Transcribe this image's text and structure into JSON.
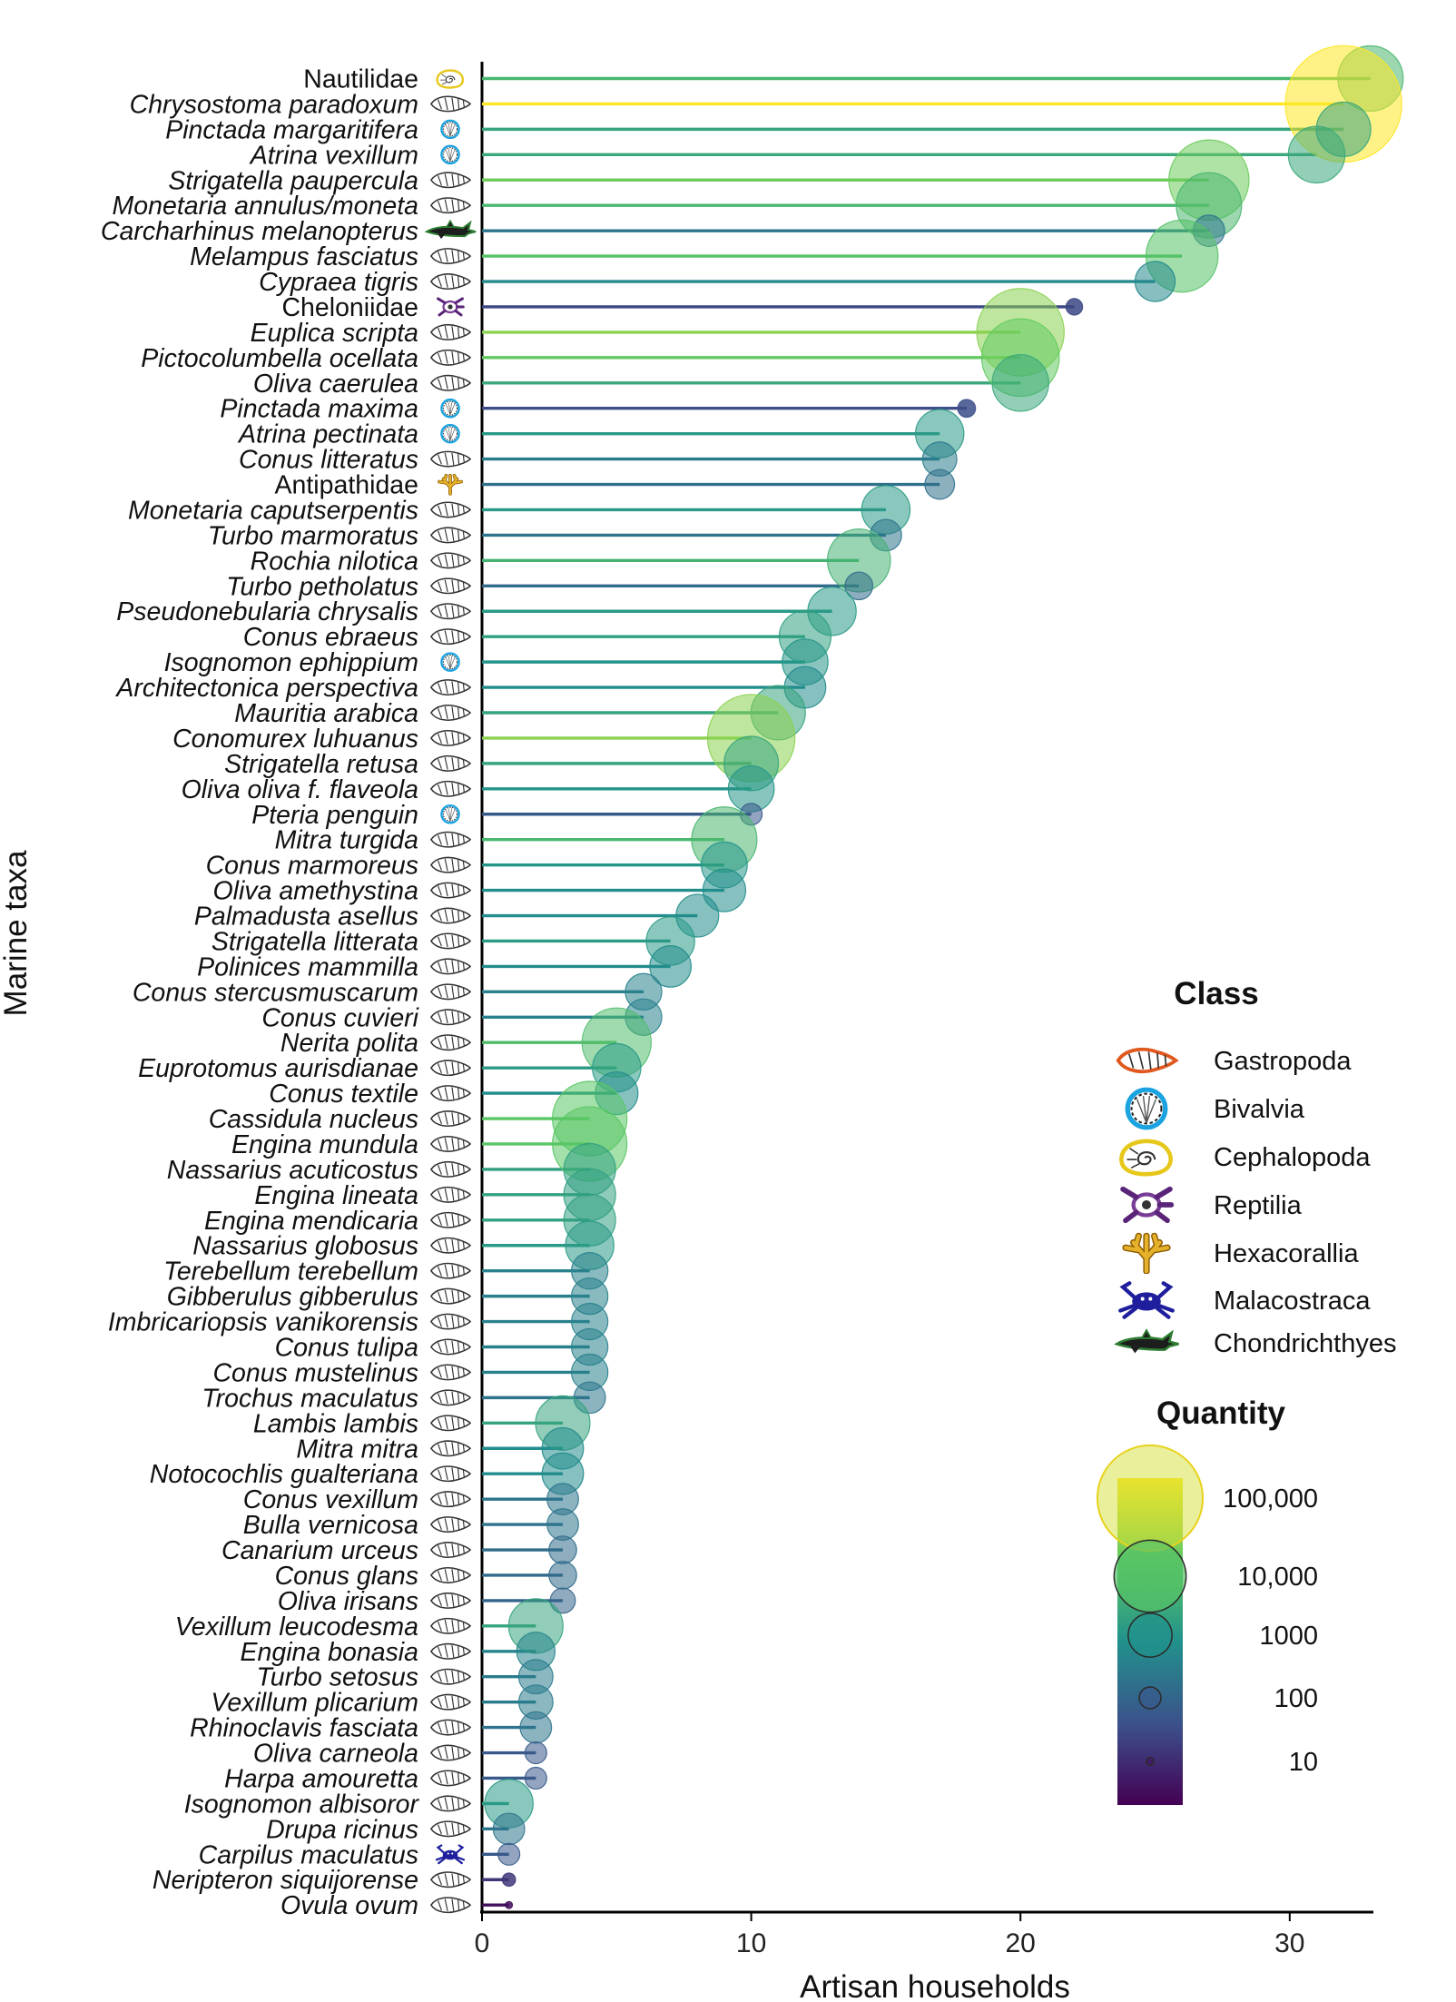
{
  "chart_data": {
    "type": "lollipop",
    "xlabel": "Artisan households",
    "ylabel": "Marine taxa",
    "xlim": [
      0,
      33
    ],
    "x_ticks": [
      "0",
      "10",
      "20",
      "30"
    ],
    "x_tick_values": [
      0,
      10,
      20,
      30
    ],
    "items": [
      {
        "name": "Nautilidae",
        "italic": false,
        "class": "Cephalopoda",
        "households": 33,
        "quantity": 6000
      },
      {
        "name": "Chrysostoma paradoxum",
        "italic": true,
        "class": "Gastropoda",
        "households": 32,
        "quantity": 200000
      },
      {
        "name": "Pinctada margaritifera",
        "italic": true,
        "class": "Bivalvia",
        "households": 32,
        "quantity": 2500
      },
      {
        "name": "Atrina vexillum",
        "italic": true,
        "class": "Bivalvia",
        "households": 31,
        "quantity": 3000
      },
      {
        "name": "Strigatella paupercula",
        "italic": true,
        "class": "Gastropoda",
        "households": 27,
        "quantity": 18000
      },
      {
        "name": "Monetaria annulus/moneta",
        "italic": true,
        "class": "Gastropoda",
        "households": 27,
        "quantity": 6000
      },
      {
        "name": "Carcharhinus melanopterus",
        "italic": true,
        "class": "Chondrichthyes",
        "households": 27,
        "quantity": 300
      },
      {
        "name": "Melampus fasciatus",
        "italic": true,
        "class": "Gastropoda",
        "households": 26,
        "quantity": 10000
      },
      {
        "name": "Cypraea tigris",
        "italic": true,
        "class": "Gastropoda",
        "households": 25,
        "quantity": 700
      },
      {
        "name": "Cheloniidae",
        "italic": false,
        "class": "Reptilia",
        "households": 22,
        "quantity": 50
      },
      {
        "name": "Euplica scripta",
        "italic": true,
        "class": "Gastropoda",
        "households": 20,
        "quantity": 30000
      },
      {
        "name": "Pictocolumbella ocellata",
        "italic": true,
        "class": "Gastropoda",
        "households": 20,
        "quantity": 15000
      },
      {
        "name": "Oliva caerulea",
        "italic": true,
        "class": "Gastropoda",
        "households": 20,
        "quantity": 3000
      },
      {
        "name": "Pinctada maxima",
        "italic": true,
        "class": "Bivalvia",
        "households": 18,
        "quantity": 60
      },
      {
        "name": "Atrina pectinata",
        "italic": true,
        "class": "Bivalvia",
        "households": 17,
        "quantity": 1500
      },
      {
        "name": "Conus litteratus",
        "italic": true,
        "class": "Gastropoda",
        "households": 17,
        "quantity": 400
      },
      {
        "name": "Antipathidae",
        "italic": false,
        "class": "Hexacorallia",
        "households": 17,
        "quantity": 250
      },
      {
        "name": "Monetaria caputserpentis",
        "italic": true,
        "class": "Gastropoda",
        "households": 15,
        "quantity": 1500
      },
      {
        "name": "Turbo marmoratus",
        "italic": true,
        "class": "Gastropoda",
        "households": 15,
        "quantity": 300
      },
      {
        "name": "Rochia nilotica",
        "italic": true,
        "class": "Gastropoda",
        "households": 14,
        "quantity": 5000
      },
      {
        "name": "Turbo petholatus",
        "italic": true,
        "class": "Gastropoda",
        "households": 14,
        "quantity": 200
      },
      {
        "name": "Pseudonebularia chrysalis",
        "italic": true,
        "class": "Gastropoda",
        "households": 13,
        "quantity": 1500
      },
      {
        "name": "Conus ebraeus",
        "italic": true,
        "class": "Gastropoda",
        "households": 12,
        "quantity": 2000
      },
      {
        "name": "Isognomon ephippium",
        "italic": true,
        "class": "Bivalvia",
        "households": 12,
        "quantity": 1200
      },
      {
        "name": "Architectonica perspectiva",
        "italic": true,
        "class": "Gastropoda",
        "households": 12,
        "quantity": 800
      },
      {
        "name": "Mauritia arabica",
        "italic": true,
        "class": "Gastropoda",
        "households": 11,
        "quantity": 2500
      },
      {
        "name": "Conomurex luhuanus",
        "italic": true,
        "class": "Gastropoda",
        "households": 10,
        "quantity": 30000
      },
      {
        "name": "Strigatella retusa",
        "italic": true,
        "class": "Gastropoda",
        "households": 10,
        "quantity": 2500
      },
      {
        "name": "Oliva oliva f. flaveola",
        "italic": true,
        "class": "Gastropoda",
        "households": 10,
        "quantity": 1200
      },
      {
        "name": "Pteria penguin",
        "italic": true,
        "class": "Bivalvia",
        "households": 10,
        "quantity": 100
      },
      {
        "name": "Mitra turgida",
        "italic": true,
        "class": "Gastropoda",
        "households": 9,
        "quantity": 6000
      },
      {
        "name": "Conus marmoreus",
        "italic": true,
        "class": "Gastropoda",
        "households": 9,
        "quantity": 1200
      },
      {
        "name": "Oliva amethystina",
        "italic": true,
        "class": "Gastropoda",
        "households": 9,
        "quantity": 900
      },
      {
        "name": "Palmadusta asellus",
        "italic": true,
        "class": "Gastropoda",
        "households": 8,
        "quantity": 900
      },
      {
        "name": "Strigatella litterata",
        "italic": true,
        "class": "Gastropoda",
        "households": 7,
        "quantity": 1500
      },
      {
        "name": "Polinices mammilla",
        "italic": true,
        "class": "Gastropoda",
        "households": 7,
        "quantity": 800
      },
      {
        "name": "Conus stercusmuscarum",
        "italic": true,
        "class": "Gastropoda",
        "households": 6,
        "quantity": 500
      },
      {
        "name": "Conus cuvieri",
        "italic": true,
        "class": "Gastropoda",
        "households": 6,
        "quantity": 500
      },
      {
        "name": "Nerita polita",
        "italic": true,
        "class": "Gastropoda",
        "households": 5,
        "quantity": 8000
      },
      {
        "name": "Euprotomus aurisdianae",
        "italic": true,
        "class": "Gastropoda",
        "households": 5,
        "quantity": 1500
      },
      {
        "name": "Conus textile",
        "italic": true,
        "class": "Gastropoda",
        "households": 5,
        "quantity": 900
      },
      {
        "name": "Cassidula nucleus",
        "italic": true,
        "class": "Gastropoda",
        "households": 4,
        "quantity": 12000
      },
      {
        "name": "Engina mundula",
        "italic": true,
        "class": "Gastropoda",
        "households": 4,
        "quantity": 12000
      },
      {
        "name": "Nassarius acuticostus",
        "italic": true,
        "class": "Gastropoda",
        "households": 4,
        "quantity": 2000
      },
      {
        "name": "Engina lineata",
        "italic": true,
        "class": "Gastropoda",
        "households": 4,
        "quantity": 2000
      },
      {
        "name": "Engina mendicaria",
        "italic": true,
        "class": "Gastropoda",
        "households": 4,
        "quantity": 2000
      },
      {
        "name": "Nassarius globosus",
        "italic": true,
        "class": "Gastropoda",
        "households": 4,
        "quantity": 1500
      },
      {
        "name": "Terebellum terebellum",
        "italic": true,
        "class": "Gastropoda",
        "households": 4,
        "quantity": 500
      },
      {
        "name": "Gibberulus gibberulus",
        "italic": true,
        "class": "Gastropoda",
        "households": 4,
        "quantity": 500
      },
      {
        "name": "Imbricariopsis vanikorensis",
        "italic": true,
        "class": "Gastropoda",
        "households": 4,
        "quantity": 500
      },
      {
        "name": "Conus tulipa",
        "italic": true,
        "class": "Gastropoda",
        "households": 4,
        "quantity": 500
      },
      {
        "name": "Conus mustelinus",
        "italic": true,
        "class": "Gastropoda",
        "households": 4,
        "quantity": 500
      },
      {
        "name": "Trochus maculatus",
        "italic": true,
        "class": "Gastropoda",
        "households": 4,
        "quantity": 300
      },
      {
        "name": "Lambis lambis",
        "italic": true,
        "class": "Gastropoda",
        "households": 3,
        "quantity": 2500
      },
      {
        "name": "Mitra mitra",
        "italic": true,
        "class": "Gastropoda",
        "households": 3,
        "quantity": 800
      },
      {
        "name": "Notocochlis gualteriana",
        "italic": true,
        "class": "Gastropoda",
        "households": 3,
        "quantity": 800
      },
      {
        "name": "Conus vexillum",
        "italic": true,
        "class": "Gastropoda",
        "households": 3,
        "quantity": 300
      },
      {
        "name": "Bulla vernicosa",
        "italic": true,
        "class": "Gastropoda",
        "households": 3,
        "quantity": 300
      },
      {
        "name": "Canarium urceus",
        "italic": true,
        "class": "Gastropoda",
        "households": 3,
        "quantity": 200
      },
      {
        "name": "Conus glans",
        "italic": true,
        "class": "Gastropoda",
        "households": 3,
        "quantity": 200
      },
      {
        "name": "Oliva irisans",
        "italic": true,
        "class": "Gastropoda",
        "households": 3,
        "quantity": 150
      },
      {
        "name": "Vexillum leucodesma",
        "italic": true,
        "class": "Gastropoda",
        "households": 2,
        "quantity": 2500
      },
      {
        "name": "Engina bonasia",
        "italic": true,
        "class": "Gastropoda",
        "households": 2,
        "quantity": 600
      },
      {
        "name": "Turbo setosus",
        "italic": true,
        "class": "Gastropoda",
        "households": 2,
        "quantity": 400
      },
      {
        "name": "Vexillum plicarium",
        "italic": true,
        "class": "Gastropoda",
        "households": 2,
        "quantity": 400
      },
      {
        "name": "Rhinoclavis fasciata",
        "italic": true,
        "class": "Gastropoda",
        "households": 2,
        "quantity": 300
      },
      {
        "name": "Oliva carneola",
        "italic": true,
        "class": "Gastropoda",
        "households": 2,
        "quantity": 100
      },
      {
        "name": "Harpa amouretta",
        "italic": true,
        "class": "Gastropoda",
        "households": 2,
        "quantity": 100
      },
      {
        "name": "Isognomon albisoror",
        "italic": true,
        "class": "Gastropoda",
        "households": 1,
        "quantity": 1500
      },
      {
        "name": "Drupa ricinus",
        "italic": true,
        "class": "Gastropoda",
        "households": 1,
        "quantity": 300
      },
      {
        "name": "Carpilus maculatus",
        "italic": true,
        "class": "Malacostraca",
        "households": 1,
        "quantity": 100
      },
      {
        "name": "Neripteron siquijorense",
        "italic": true,
        "class": "Gastropoda",
        "households": 1,
        "quantity": 30
      },
      {
        "name": "Ovula ovum",
        "italic": true,
        "class": "Gastropoda",
        "households": 1,
        "quantity": 8
      }
    ]
  },
  "legend_class": {
    "title": "Class",
    "items": [
      {
        "label": "Gastropoda",
        "icon": "gastropod-shell-icon"
      },
      {
        "label": "Bivalvia",
        "icon": "bivalve-shell-icon"
      },
      {
        "label": "Cephalopoda",
        "icon": "nautilus-icon"
      },
      {
        "label": "Reptilia",
        "icon": "turtle-icon"
      },
      {
        "label": "Hexacorallia",
        "icon": "coral-icon"
      },
      {
        "label": "Malacostraca",
        "icon": "crab-icon"
      },
      {
        "label": "Chondrichthyes",
        "icon": "shark-icon"
      }
    ]
  },
  "legend_quantity": {
    "title": "Quantity",
    "breaks": [
      {
        "label": "100,000",
        "value": 100000
      },
      {
        "label": "10,000",
        "value": 10000
      },
      {
        "label": "1000",
        "value": 1000
      },
      {
        "label": "100",
        "value": 100
      },
      {
        "label": "10",
        "value": 10
      }
    ],
    "colormap": [
      "#440154",
      "#3b528b",
      "#21918c",
      "#5ec962",
      "#fde725"
    ]
  },
  "colors": {
    "gastropod_outline": "#e0581d",
    "bivalve_outline": "#1aa3e0",
    "cephalopod_outline": "#e7c81a",
    "reptile_outline": "#7a3d96",
    "coral_fill": "#d9a31b",
    "crab_fill": "#1f1f9e",
    "shark_fill": "#2e7d32"
  }
}
